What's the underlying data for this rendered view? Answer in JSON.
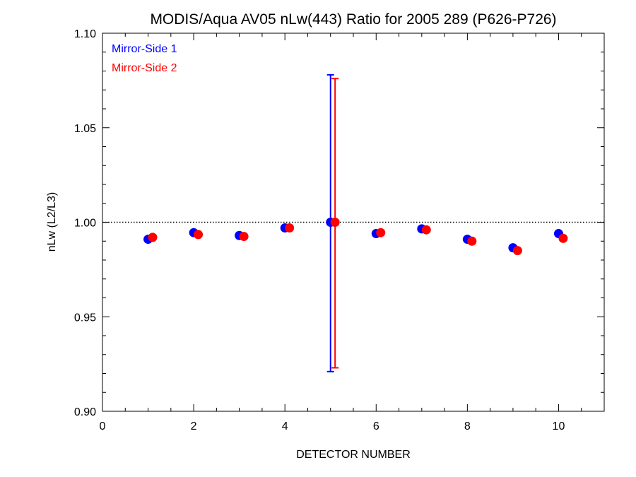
{
  "chart_data": {
    "type": "scatter",
    "title": "MODIS/Aqua AV05 nLw(443) Ratio for 2005 289 (P626-P726)",
    "xlabel": "DETECTOR NUMBER",
    "ylabel": "nLw (L2/L3)",
    "xlim": [
      0,
      11
    ],
    "ylim": [
      0.9,
      1.1
    ],
    "xticks": [
      0,
      2,
      4,
      6,
      8,
      10
    ],
    "xtick_labels": [
      "0",
      "2",
      "4",
      "6",
      "8",
      "10"
    ],
    "yticks": [
      0.9,
      0.95,
      1.0,
      1.05,
      1.1
    ],
    "ytick_labels": [
      "0.90",
      "0.95",
      "1.00",
      "1.05",
      "1.10"
    ],
    "reference_line": 1.0,
    "legend_position": "top-left",
    "grid": false,
    "series": [
      {
        "name": "Mirror-Side 1",
        "color": "#0000ff",
        "x": [
          1,
          2,
          3,
          4,
          5,
          6,
          7,
          8,
          9,
          10
        ],
        "y": [
          0.991,
          0.9945,
          0.993,
          0.997,
          1.0,
          0.994,
          0.9965,
          0.991,
          0.9865,
          0.994
        ],
        "errorbars": [
          null,
          null,
          null,
          null,
          {
            "low": 0.921,
            "high": 1.078
          },
          null,
          null,
          null,
          null,
          null
        ]
      },
      {
        "name": "Mirror-Side 2",
        "color": "#ff0000",
        "x": [
          1.1,
          2.1,
          3.1,
          4.1,
          5.1,
          6.1,
          7.1,
          8.1,
          9.1,
          10.1
        ],
        "y": [
          0.992,
          0.9935,
          0.9925,
          0.997,
          1.0,
          0.9945,
          0.996,
          0.99,
          0.985,
          0.9915
        ],
        "errorbars": [
          null,
          null,
          null,
          null,
          {
            "low": 0.923,
            "high": 1.076
          },
          null,
          null,
          null,
          null,
          null
        ]
      }
    ]
  }
}
